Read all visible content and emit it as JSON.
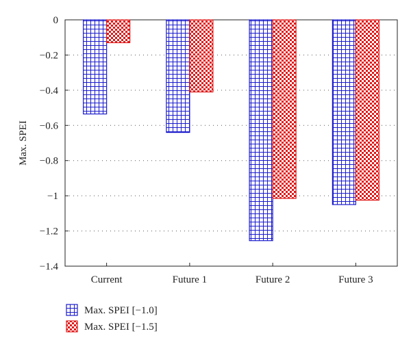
{
  "chart_data": {
    "type": "bar",
    "categories": [
      "Current",
      "Future 1",
      "Future 2",
      "Future 3"
    ],
    "series": [
      {
        "name": "Max. SPEI [−1.0]",
        "values": [
          -0.535,
          -0.64,
          -1.255,
          -1.05
        ],
        "color": "#1a1acc",
        "pattern": "grid"
      },
      {
        "name": "Max. SPEI [−1.5]",
        "values": [
          -0.13,
          -0.41,
          -1.015,
          -1.025
        ],
        "color": "#e01818",
        "pattern": "checker"
      }
    ],
    "ylabel": "Max. SPEI",
    "xlabel": "",
    "ylim": [
      -1.4,
      0
    ],
    "yticks": [
      0,
      -0.2,
      -0.4,
      -0.6,
      -0.8,
      -1,
      -1.2,
      -1.4
    ],
    "ytick_labels": [
      "0",
      "−0.2",
      "−0.4",
      "−0.6",
      "−0.8",
      "−1",
      "−1.2",
      "−1.4"
    ],
    "grid": "horizontal dotted",
    "legend_position": "bottom-left"
  }
}
